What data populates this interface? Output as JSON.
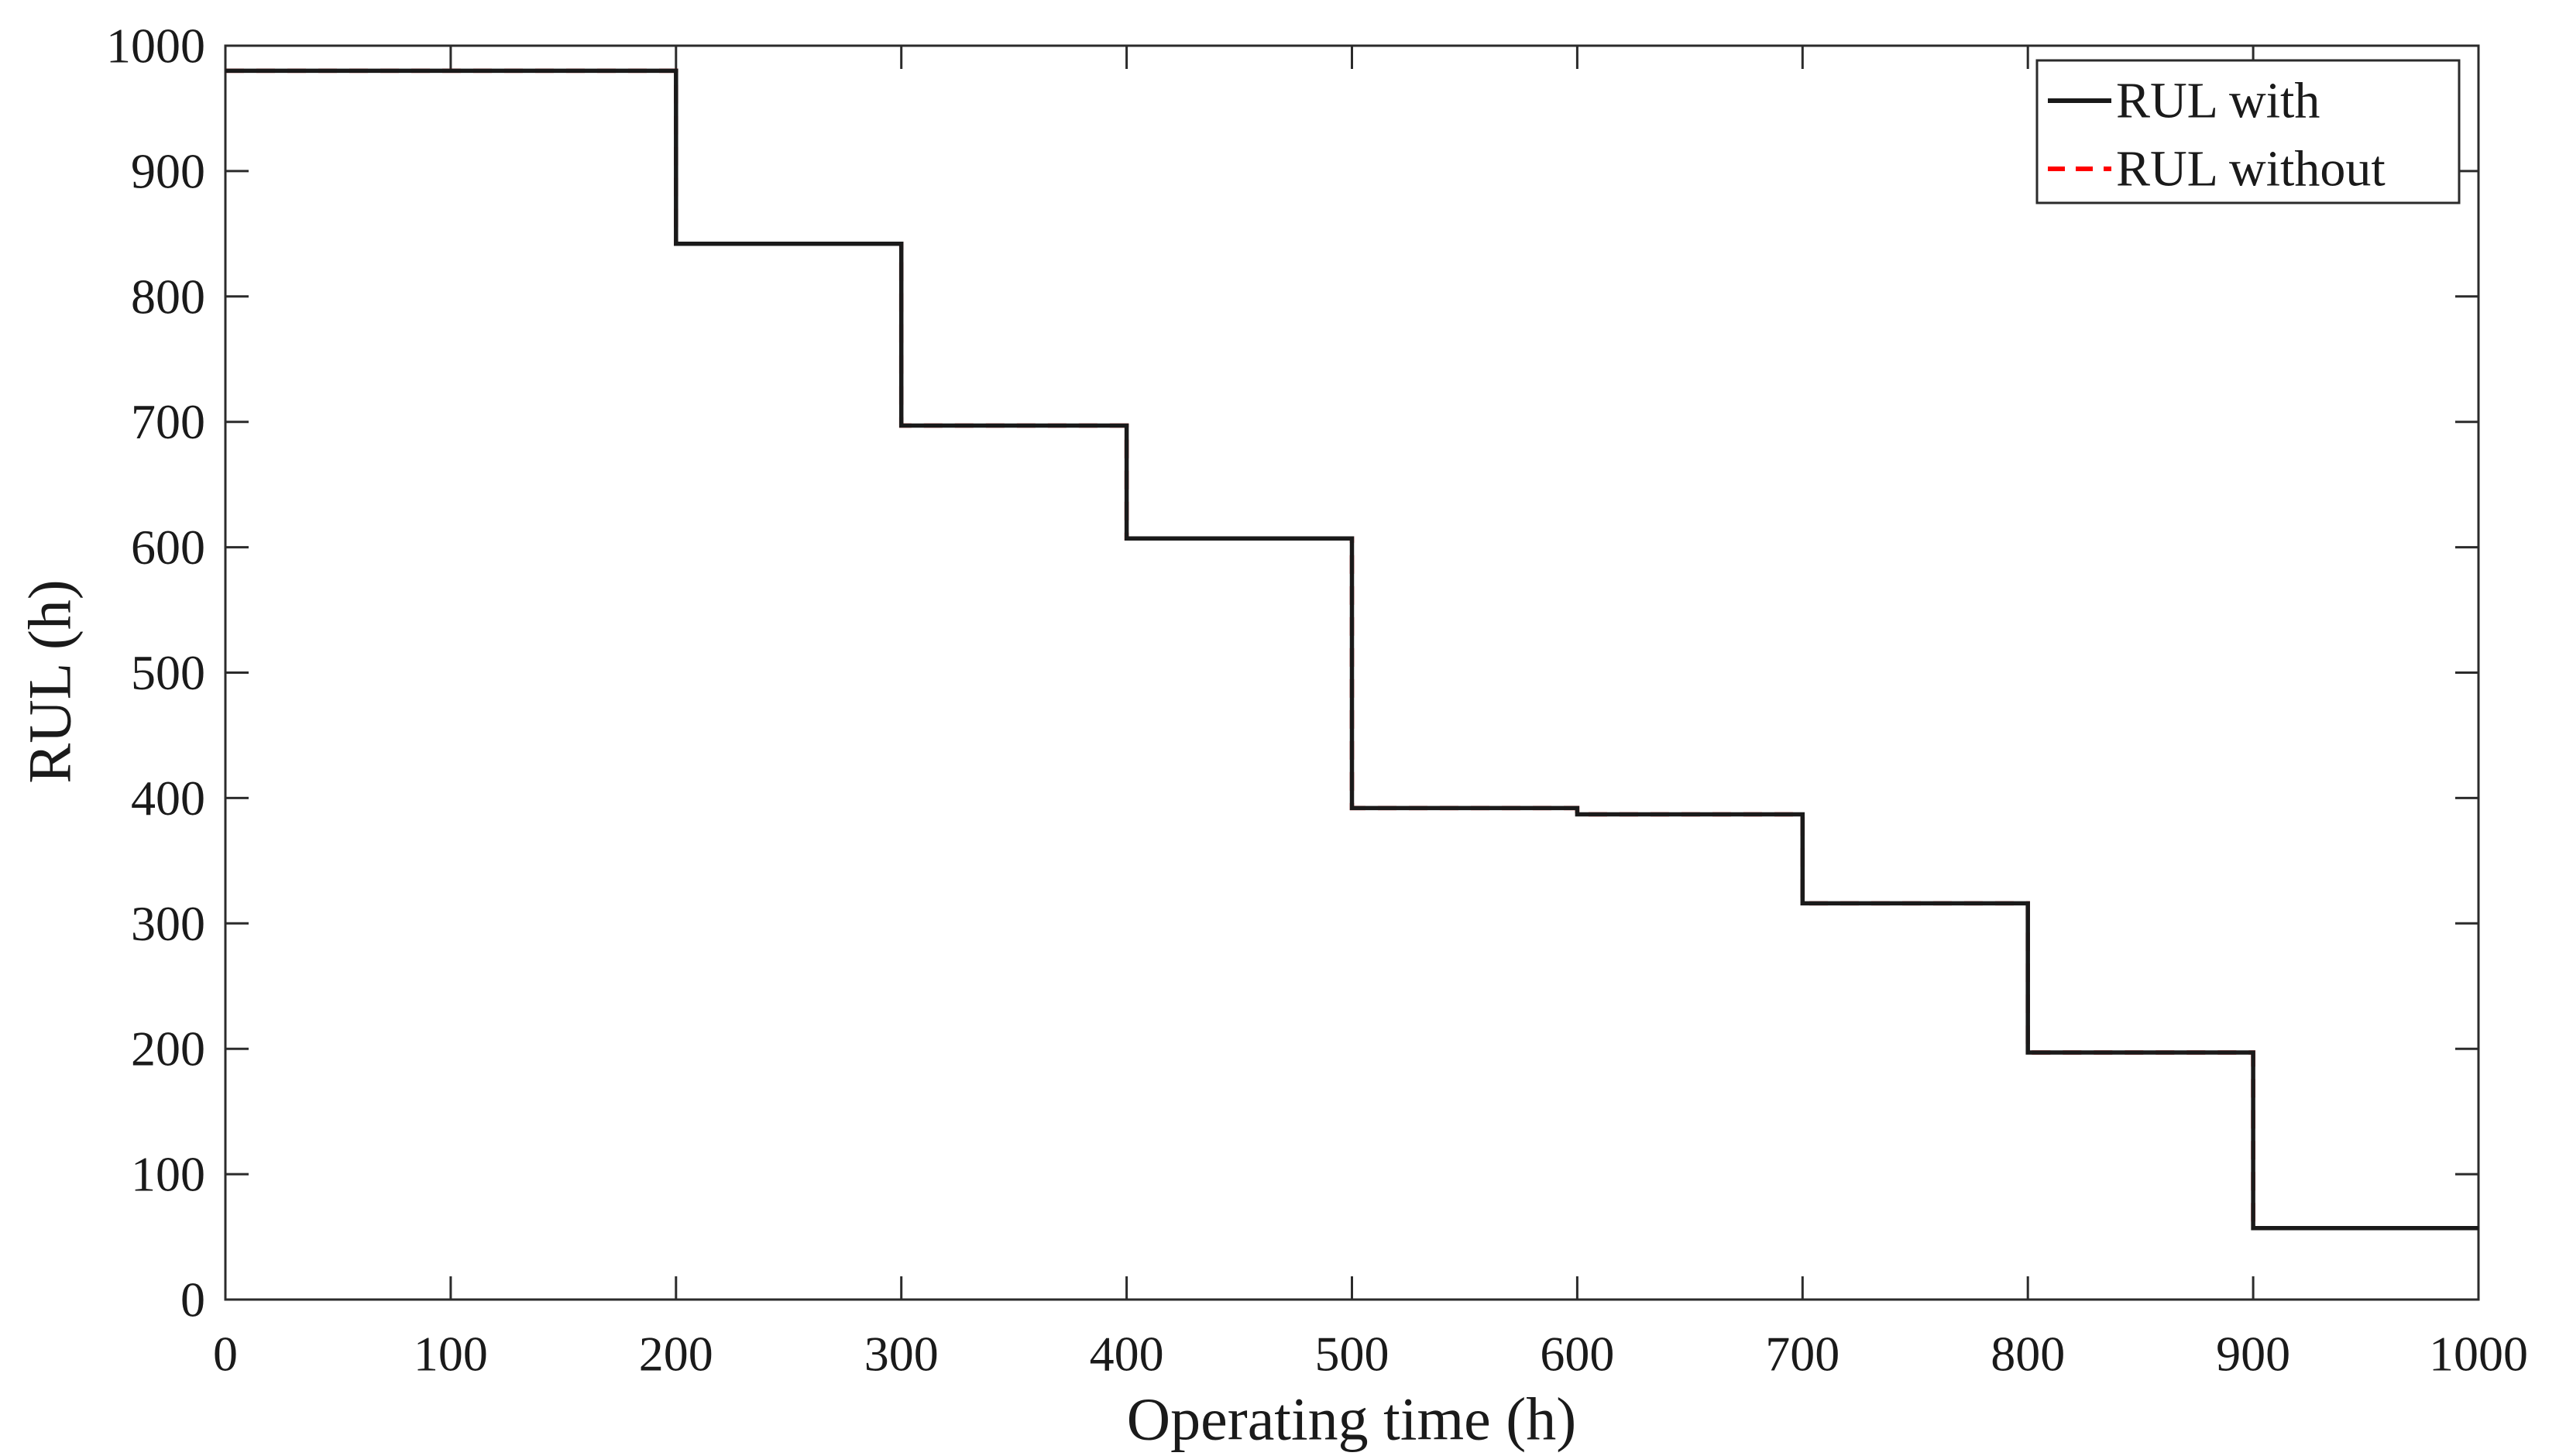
{
  "figure": {
    "background_color": "#ffffff"
  },
  "chart_data": {
    "type": "line",
    "subtype": "step-post",
    "title": "",
    "xlabel": "Operating time (h)",
    "ylabel": "RUL (h)",
    "xlim": [
      0,
      1000
    ],
    "ylim": [
      0,
      1000
    ],
    "xticks": [
      0,
      100,
      200,
      300,
      400,
      500,
      600,
      700,
      800,
      900,
      1000
    ],
    "yticks": [
      0,
      100,
      200,
      300,
      400,
      500,
      600,
      700,
      800,
      900,
      1000
    ],
    "grid": false,
    "boxed_frame": true,
    "tick_direction": "in",
    "axis_color": "#2b2b2b",
    "legend": {
      "position": "top-right",
      "background": "#ffffff",
      "border_color": "#2b2b2b"
    },
    "series": [
      {
        "name": "RUL with",
        "color": "#1a1a1a",
        "line_style": "solid",
        "step_x": [
          0,
          200,
          300,
          400,
          500,
          600,
          700,
          800,
          900
        ],
        "levels": [
          980,
          842,
          697,
          607,
          392,
          387,
          316,
          197,
          57
        ],
        "x_end": 1000
      },
      {
        "name": "RUL without",
        "color": "#ff0000",
        "line_style": "dashed",
        "step_x": [
          0,
          200,
          300,
          400,
          500,
          600,
          700,
          800,
          900
        ],
        "levels": [
          980,
          842,
          697,
          607,
          392,
          387,
          316,
          197,
          57
        ],
        "x_end": 1000,
        "note": "coincides exactly with 'RUL with' and is hidden beneath it"
      }
    ]
  }
}
